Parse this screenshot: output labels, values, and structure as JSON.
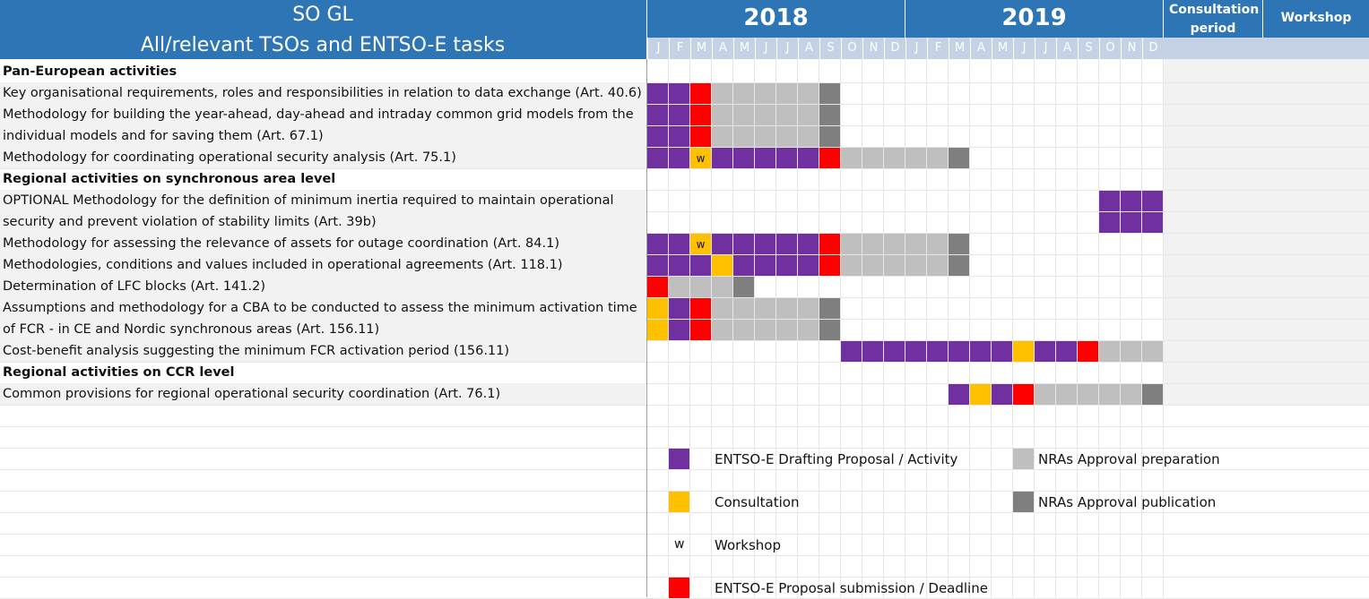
{
  "header": {
    "title_line1": "SO GL",
    "title_line2": "All/relevant TSOs and ENTSO-E tasks",
    "year1": "2018",
    "year2": "2019",
    "consultation_header": "Consultation period",
    "workshop_header": "Workshop",
    "months": [
      "J",
      "F",
      "M",
      "A",
      "M",
      "J",
      "J",
      "A",
      "S",
      "O",
      "N",
      "D",
      "J",
      "F",
      "M",
      "A",
      "M",
      "J",
      "J",
      "A",
      "S",
      "O",
      "N",
      "D"
    ]
  },
  "colors": {
    "drafting": "#7030A0",
    "consultation": "#FFC000",
    "deadline": "#FF0000",
    "approval_prep": "#BFBFBF",
    "approval_pub": "#7F7F7F",
    "header_blue": "#2E75B6",
    "month_strip": "#C5D2E6",
    "row_shade": "#F2F2F2"
  },
  "rows": [
    {
      "label": "Pan-European activities",
      "section": true,
      "cells": ""
    },
    {
      "label": "Key organisational requirements, roles and responsibilities in relation to data exchange (Art. 40.6)",
      "section": false,
      "cells": "PPRGGGGGA"
    },
    {
      "label": "Methodology for building the year-ahead, day-ahead and intraday common grid models from the",
      "section": false,
      "cells": "PPRGGGGGA"
    },
    {
      "label": "individual models and for saving them (Art. 67.1)",
      "section": false,
      "cells": "PPRGGGGGA"
    },
    {
      "label": "Methodology for coordinating operational security analysis (Art. 75.1)",
      "section": false,
      "cells": "PPWPPPPPRGGGGGA"
    },
    {
      "label": "Regional activities on synchronous area level",
      "section": true,
      "cells": ""
    },
    {
      "label": "OPTIONAL Methodology for the definition of minimum inertia required to maintain operational",
      "section": false,
      "cells": ".....................PPP"
    },
    {
      "label": "security and prevent violation of stability limits (Art. 39b)",
      "section": false,
      "cells": ".....................PPP"
    },
    {
      "label": "Methodology for assessing the relevance of assets for outage coordination (Art. 84.1)",
      "section": false,
      "cells": "PPWPPPPPRGGGGGA"
    },
    {
      "label": "Methodologies, conditions and values included in operational agreements (Art. 118.1)",
      "section": false,
      "cells": "PPPYPPPPRGGGGGA"
    },
    {
      "label": "Determination of LFC blocks (Art. 141.2)",
      "section": false,
      "cells": "RGGGA"
    },
    {
      "label": "Assumptions and methodology for a CBA to be conducted to assess the minimum activation time",
      "section": false,
      "cells": "YPRGGGGGA"
    },
    {
      "label": "of FCR - in CE and Nordic synchronous areas (Art. 156.11)",
      "section": false,
      "cells": "YPRGGGGGA"
    },
    {
      "label": "Cost-benefit analysis suggesting the minimum FCR activation period (156.11)",
      "section": false,
      "cells": ".........PPPPPPPPYPPRGGG"
    },
    {
      "label": "Regional activities on CCR level",
      "section": true,
      "cells": ""
    },
    {
      "label": "Common provisions for regional operational security coordination (Art. 76.1)",
      "section": false,
      "cells": "..............PYPRGGGGGA"
    }
  ],
  "legend": {
    "drafting": "ENTSO-E Drafting Proposal / Activity",
    "consultation": "Consultation",
    "workshop_symbol": "w",
    "workshop": "Workshop",
    "deadline": "ENTSO-E Proposal submission / Deadline",
    "approval_prep": "NRAs Approval preparation",
    "approval_pub": "NRAs Approval publication"
  }
}
